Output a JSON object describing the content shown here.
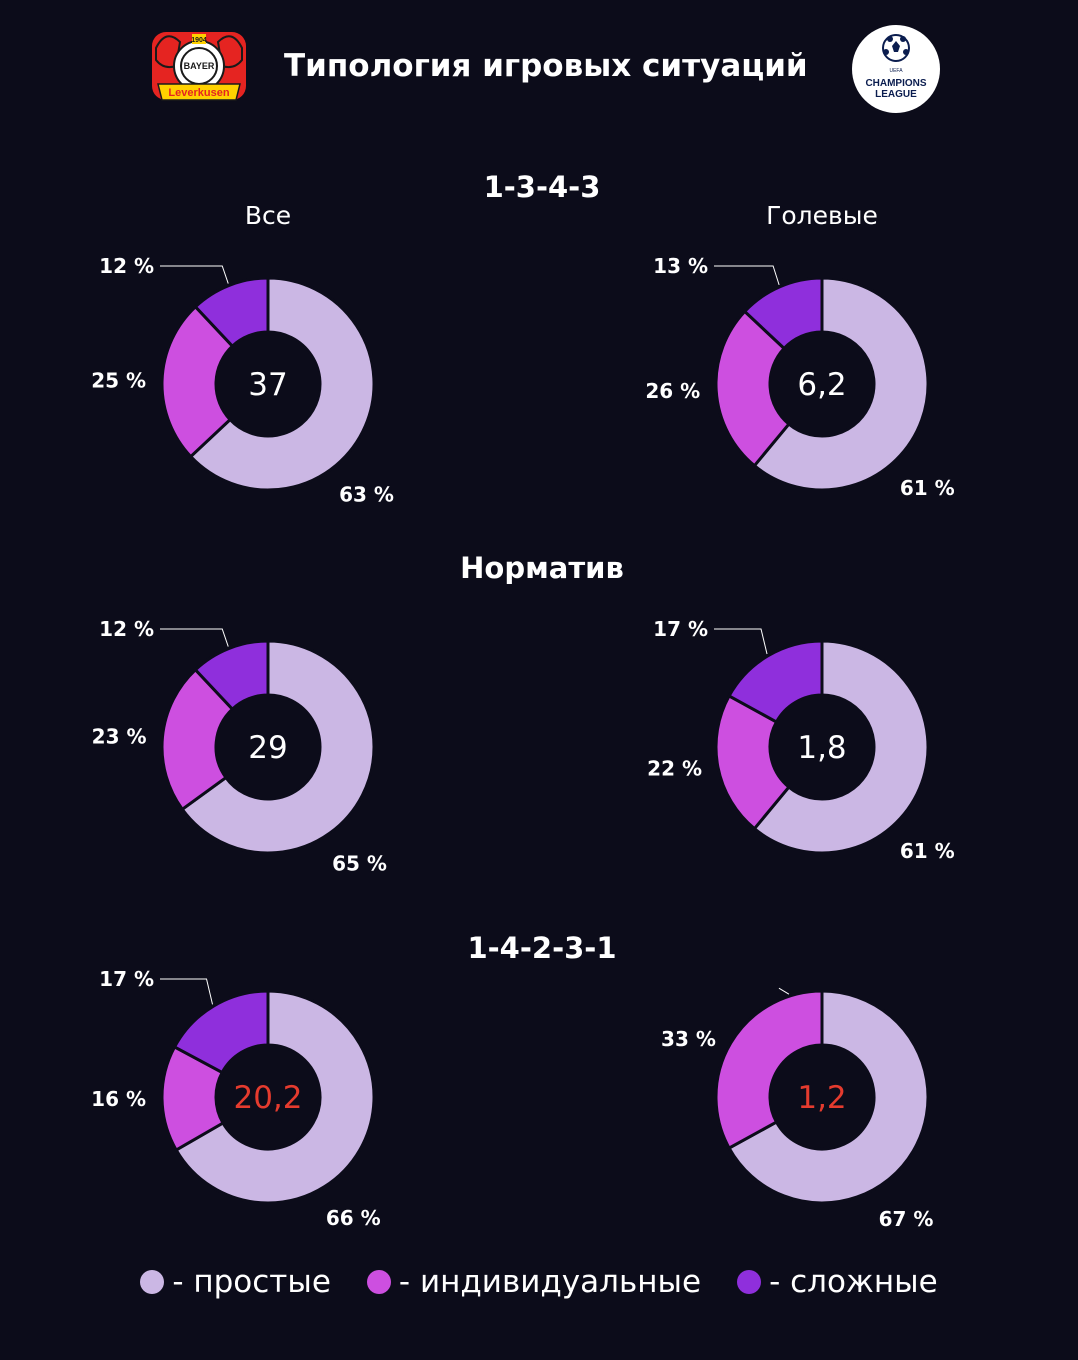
{
  "title": "Типология игровых ситуаций",
  "logos": {
    "left": {
      "name": "Bayer 04 Leverkusen",
      "year": "1904",
      "word": "BAYER",
      "banner": "Leverkusen"
    },
    "right": {
      "name": "UEFA Champions League",
      "line1": "UEFA",
      "line2": "CHAMPIONS",
      "line3": "LEAGUE"
    }
  },
  "colors": {
    "background": "#0c0c1a",
    "simple": "#cbb7e4",
    "individual": "#cd4fe0",
    "complex": "#8f2fdc",
    "highlight": "#e53b2e"
  },
  "legend": [
    {
      "key": "simple",
      "label": "- простые"
    },
    {
      "key": "individual",
      "label": "- индивидуальные"
    },
    {
      "key": "complex",
      "label": "- сложные"
    }
  ],
  "chart_data": [
    {
      "type": "pie",
      "group": "1-3-4-3",
      "column": "Все",
      "center": "37",
      "series": [
        {
          "name": "простые",
          "value": 63,
          "label": "63 %"
        },
        {
          "name": "индивидуальные",
          "value": 25,
          "label": "25 %"
        },
        {
          "name": "сложные",
          "value": 12,
          "label": "12 %"
        }
      ]
    },
    {
      "type": "pie",
      "group": "1-3-4-3",
      "column": "Голевые",
      "center": "6,2",
      "series": [
        {
          "name": "простые",
          "value": 61,
          "label": "61 %"
        },
        {
          "name": "индивидуальные",
          "value": 26,
          "label": "26 %"
        },
        {
          "name": "сложные",
          "value": 13,
          "label": "13 %"
        }
      ]
    },
    {
      "type": "pie",
      "group": "Норматив",
      "column": "",
      "center": "29",
      "series": [
        {
          "name": "простые",
          "value": 65,
          "label": "65 %"
        },
        {
          "name": "индивидуальные",
          "value": 23,
          "label": "23 %"
        },
        {
          "name": "сложные",
          "value": 12,
          "label": "12 %"
        }
      ]
    },
    {
      "type": "pie",
      "group": "Норматив",
      "column": "",
      "center": "1,8",
      "series": [
        {
          "name": "простые",
          "value": 61,
          "label": "61 %"
        },
        {
          "name": "индивидуальные",
          "value": 22,
          "label": "22 %"
        },
        {
          "name": "сложные",
          "value": 17,
          "label": "17 %"
        }
      ]
    },
    {
      "type": "pie",
      "group": "1-4-2-3-1",
      "column": "",
      "center": "20,2",
      "highlight": true,
      "series": [
        {
          "name": "простые",
          "value": 66,
          "label": "66 %"
        },
        {
          "name": "индивидуальные",
          "value": 16,
          "label": "16 %"
        },
        {
          "name": "сложные",
          "value": 17,
          "label": "17 %"
        }
      ]
    },
    {
      "type": "pie",
      "group": "1-4-2-3-1",
      "column": "",
      "center": "1,2",
      "highlight": true,
      "series": [
        {
          "name": "простые",
          "value": 67,
          "label": "67 %"
        },
        {
          "name": "индивидуальные",
          "value": 33,
          "label": "33 %"
        },
        {
          "name": "сложные",
          "value": 0,
          "label": ""
        }
      ]
    }
  ]
}
